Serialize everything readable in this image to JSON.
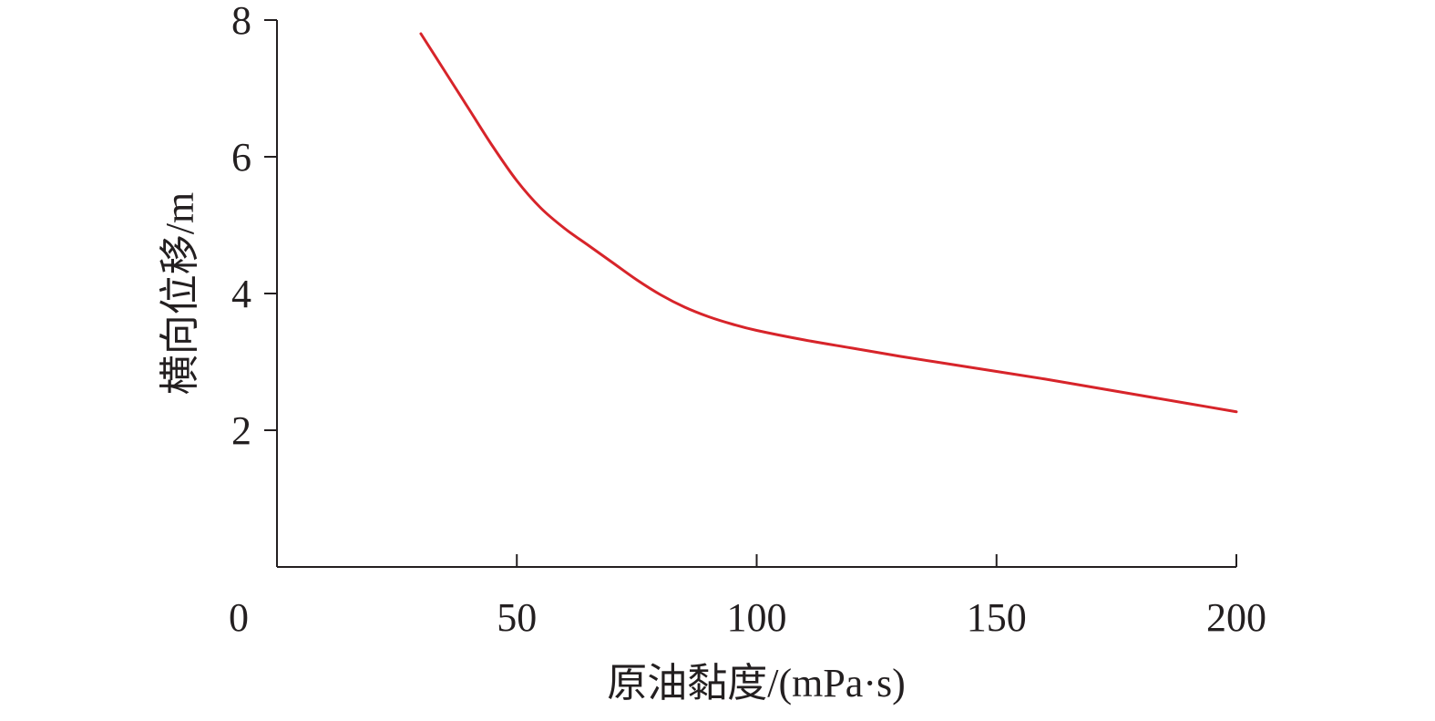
{
  "chart_data": {
    "type": "line",
    "xlabel": "原油黏度/(mPa·s)",
    "ylabel": "横向位移/m",
    "xlim": [
      0,
      200
    ],
    "ylim": [
      0,
      8
    ],
    "x_ticks": [
      0,
      50,
      100,
      150,
      200
    ],
    "y_ticks": [
      2,
      4,
      6,
      8
    ],
    "x_tick_labels": [
      "0",
      "50",
      "100",
      "150",
      "200"
    ],
    "y_tick_labels": [
      "2",
      "4",
      "6",
      "8"
    ],
    "grid": false,
    "series": [
      {
        "color": "#d7242a",
        "x": [
          30,
          35,
          40,
          45,
          50,
          55,
          60,
          65,
          70,
          75,
          80,
          85,
          90,
          95,
          100,
          110,
          120,
          130,
          140,
          150,
          160,
          170,
          180,
          190,
          200
        ],
        "y": [
          7.8,
          7.25,
          6.7,
          6.15,
          5.65,
          5.25,
          4.95,
          4.7,
          4.45,
          4.2,
          3.98,
          3.8,
          3.66,
          3.55,
          3.46,
          3.32,
          3.2,
          3.08,
          2.97,
          2.86,
          2.75,
          2.63,
          2.51,
          2.39,
          2.27
        ]
      }
    ]
  }
}
